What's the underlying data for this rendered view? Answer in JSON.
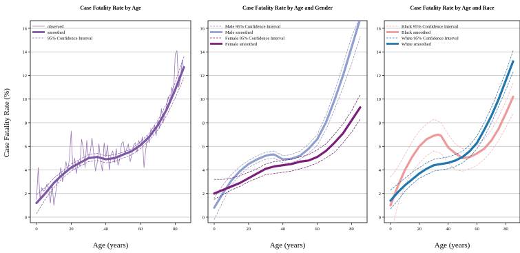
{
  "figure": {
    "ylabel": "Case Fatality Rate (%)"
  },
  "colors": {
    "purple_light": "#9a76b8",
    "purple": "#7d56a6",
    "male": "#8f9fcf",
    "male_ci": "#8a8ab5",
    "female": "#7b1e7a",
    "female_ci": "#5e1760",
    "black": "#ef9a9a",
    "black_ci": "#f4a8a8",
    "white": "#2176ae",
    "white_ci": "#1f6aa5",
    "grid": "#bdbdbd"
  },
  "chart_data": [
    {
      "type": "line",
      "title": "Case Fatality Rate by Age",
      "xlabel": "Age (years)",
      "ylabel": "Case Fatality Rate (%)",
      "xlim": [
        0,
        85
      ],
      "ylim": [
        0,
        16
      ],
      "xticks": [
        0,
        20,
        40,
        60,
        80
      ],
      "yticks": [
        0,
        2,
        4,
        6,
        8,
        10,
        12,
        14,
        16
      ],
      "grid": "horizontal",
      "legend_position": "top-left",
      "series": [
        {
          "name": "observed",
          "color": "#9a76b8",
          "width": 0.8,
          "dash": "",
          "x": [
            0,
            1,
            2,
            3,
            4,
            5,
            6,
            7,
            8,
            9,
            10,
            11,
            12,
            13,
            14,
            15,
            16,
            17,
            18,
            19,
            20,
            21,
            22,
            23,
            24,
            25,
            26,
            27,
            28,
            29,
            30,
            31,
            32,
            33,
            34,
            35,
            36,
            37,
            38,
            39,
            40,
            41,
            42,
            43,
            44,
            45,
            46,
            47,
            48,
            49,
            50,
            51,
            52,
            53,
            54,
            55,
            56,
            57,
            58,
            59,
            60,
            61,
            62,
            63,
            64,
            65,
            66,
            67,
            68,
            69,
            70,
            71,
            72,
            73,
            74,
            75,
            76,
            77,
            78,
            79,
            80,
            81,
            82,
            83,
            84,
            85
          ],
          "y": [
            1.5,
            4.2,
            1.6,
            2.5,
            2.2,
            2.3,
            2.8,
            2.4,
            1.2,
            2.8,
            1.0,
            2.0,
            3.0,
            3.3,
            4.2,
            3.0,
            3.8,
            4.7,
            3.9,
            5.0,
            7.3,
            4.0,
            5.0,
            3.7,
            4.8,
            4.3,
            6.6,
            5.8,
            4.2,
            6.5,
            4.9,
            5.5,
            6.7,
            5.4,
            3.9,
            4.6,
            6.2,
            4.7,
            3.9,
            6.3,
            5.1,
            6.1,
            4.0,
            5.3,
            5.6,
            4.6,
            5.8,
            4.4,
            4.9,
            6.2,
            6.4,
            5.4,
            5.8,
            6.2,
            4.7,
            5.3,
            6.1,
            6.3,
            5.5,
            6.5,
            6.0,
            6.8,
            4.2,
            5.7,
            6.9,
            6.3,
            7.5,
            7.0,
            7.8,
            6.9,
            8.2,
            7.5,
            9.2,
            8.0,
            8.8,
            9.4,
            10.2,
            9.6,
            11.0,
            10.3,
            13.8,
            14.1,
            11.0,
            11.7,
            13.3,
            12.5
          ]
        },
        {
          "name": "smoothed",
          "color": "#7d56a6",
          "width": 3.2,
          "dash": "",
          "x": [
            0,
            5,
            10,
            15,
            20,
            25,
            30,
            35,
            40,
            45,
            50,
            55,
            60,
            65,
            70,
            75,
            80,
            85
          ],
          "y": [
            1.2,
            2.0,
            2.9,
            3.6,
            4.2,
            4.6,
            5.0,
            5.1,
            4.9,
            5.0,
            5.3,
            5.6,
            6.1,
            6.8,
            7.8,
            9.1,
            10.8,
            12.7
          ]
        },
        {
          "name": "95% Confidence Interval",
          "color": "#7d56a6",
          "width": 0.7,
          "dash": "2.5,2",
          "x": [
            0,
            5,
            10,
            15,
            20,
            25,
            30,
            35,
            40,
            45,
            50,
            55,
            60,
            65,
            70,
            75,
            80,
            85
          ],
          "y": [
            1.9,
            2.5,
            3.3,
            3.9,
            4.5,
            4.9,
            5.3,
            5.4,
            5.2,
            5.3,
            5.5,
            5.8,
            6.4,
            7.1,
            8.2,
            9.6,
            11.4,
            13.6
          ]
        },
        {
          "color": "#7d56a6",
          "width": 0.7,
          "dash": "2.5,2",
          "x": [
            0,
            5,
            10,
            15,
            20,
            25,
            30,
            35,
            40,
            45,
            50,
            55,
            60,
            65,
            70,
            75,
            80,
            85
          ],
          "y": [
            0.3,
            1.5,
            2.5,
            3.3,
            3.9,
            4.3,
            4.7,
            4.8,
            4.6,
            4.7,
            5.0,
            5.3,
            5.8,
            6.5,
            7.4,
            8.6,
            10.1,
            11.8
          ]
        }
      ]
    },
    {
      "type": "line",
      "title": "Case Fatality Rate by Age and Gender",
      "xlabel": "Age (years)",
      "xlim": [
        0,
        85
      ],
      "ylim": [
        0,
        16
      ],
      "xticks": [
        0,
        20,
        40,
        60,
        80
      ],
      "yticks": [
        0,
        2,
        4,
        6,
        8,
        10,
        12,
        14,
        16
      ],
      "grid": "horizontal",
      "legend_position": "top-left",
      "series": [
        {
          "name": "Male 95% Confidence Interval",
          "color": "#8a8ab5",
          "width": 0.7,
          "dash": "2.5,2",
          "x": [
            0,
            5,
            10,
            15,
            20,
            25,
            30,
            35,
            40,
            45,
            50,
            55,
            60,
            65,
            70,
            75,
            80,
            85
          ],
          "y": [
            1.6,
            2.7,
            3.6,
            4.3,
            4.8,
            5.2,
            5.5,
            5.6,
            5.2,
            5.3,
            5.6,
            6.2,
            7.0,
            8.6,
            10.6,
            12.9,
            15.3,
            17.0
          ]
        },
        {
          "color": "#8a8ab5",
          "width": 0.7,
          "dash": "2.5,2",
          "x": [
            0,
            5,
            10,
            15,
            20,
            25,
            30,
            35,
            40,
            45,
            50,
            55,
            60,
            65,
            70,
            75,
            80,
            85
          ],
          "y": [
            -0.2,
            1.3,
            2.7,
            3.6,
            4.2,
            4.6,
            4.9,
            5.0,
            4.6,
            4.6,
            4.9,
            5.4,
            6.1,
            7.4,
            9.1,
            11.0,
            13.0,
            15.3
          ]
        },
        {
          "name": "Male smoothed",
          "color": "#8f9fcf",
          "width": 3.2,
          "dash": "",
          "x": [
            0,
            5,
            10,
            15,
            20,
            25,
            30,
            33,
            35,
            40,
            45,
            50,
            55,
            60,
            65,
            70,
            75,
            80,
            85
          ],
          "y": [
            0.8,
            2.0,
            3.1,
            3.9,
            4.5,
            4.9,
            5.2,
            5.3,
            5.3,
            4.9,
            4.95,
            5.2,
            5.8,
            6.6,
            8.0,
            9.9,
            12.0,
            14.4,
            16.8
          ]
        },
        {
          "name": "Female 95% Confidence Interval",
          "color": "#5e1760",
          "width": 0.7,
          "dash": "2.5,2",
          "x": [
            0,
            5,
            10,
            15,
            20,
            25,
            30,
            35,
            40,
            45,
            50,
            55,
            60,
            65,
            70,
            75,
            80,
            85
          ],
          "y": [
            3.2,
            3.2,
            3.3,
            3.5,
            3.8,
            4.1,
            4.5,
            4.7,
            4.8,
            4.9,
            5.1,
            5.3,
            5.7,
            6.2,
            7.0,
            7.9,
            9.0,
            10.4
          ]
        },
        {
          "color": "#5e1760",
          "width": 0.7,
          "dash": "2.5,2",
          "x": [
            0,
            5,
            10,
            15,
            20,
            25,
            30,
            35,
            40,
            45,
            50,
            55,
            60,
            65,
            70,
            75,
            80,
            85
          ],
          "y": [
            1.5,
            1.9,
            2.3,
            2.6,
            3.0,
            3.3,
            3.6,
            3.7,
            3.8,
            3.9,
            4.1,
            4.3,
            4.6,
            5.0,
            5.5,
            6.3,
            7.2,
            8.3
          ]
        },
        {
          "name": "Female smoothed",
          "color": "#7b1e7a",
          "width": 3.2,
          "dash": "",
          "x": [
            0,
            5,
            10,
            15,
            20,
            25,
            30,
            35,
            40,
            45,
            50,
            55,
            60,
            65,
            70,
            75,
            80,
            85
          ],
          "y": [
            2.0,
            2.3,
            2.6,
            2.9,
            3.3,
            3.7,
            4.1,
            4.3,
            4.4,
            4.5,
            4.7,
            4.8,
            5.1,
            5.6,
            6.3,
            7.1,
            8.2,
            9.3
          ]
        }
      ]
    },
    {
      "type": "line",
      "title": "Case Fatality Rate by Age and Race",
      "xlabel": "Age (years)",
      "xlim": [
        0,
        85
      ],
      "ylim": [
        0,
        16
      ],
      "xticks": [
        0,
        20,
        40,
        60,
        80
      ],
      "yticks": [
        0,
        2,
        4,
        6,
        8,
        10,
        12,
        14,
        16
      ],
      "grid": "horizontal",
      "legend_position": "top-left",
      "series": [
        {
          "name": "Black 95% Confidence Interval",
          "color": "#f4a8a8",
          "width": 0.7,
          "dash": "2.5,2",
          "x": [
            0,
            5,
            10,
            15,
            20,
            25,
            30,
            35,
            40,
            45,
            50,
            55,
            60,
            65,
            70,
            75,
            80,
            85
          ],
          "y": [
            3.4,
            4.2,
            5.3,
            6.4,
            7.3,
            7.9,
            8.3,
            8.0,
            7.0,
            6.2,
            5.8,
            5.8,
            6.1,
            6.6,
            7.4,
            8.5,
            9.8,
            11.4
          ]
        },
        {
          "color": "#f4a8a8",
          "width": 0.7,
          "dash": "2.5,2",
          "x": [
            0,
            5,
            10,
            15,
            20,
            25,
            30,
            35,
            40,
            45,
            50,
            55,
            60,
            65,
            70,
            75,
            80,
            85
          ],
          "y": [
            -1.5,
            1.0,
            2.7,
            3.8,
            4.6,
            5.2,
            5.6,
            5.4,
            4.6,
            4.0,
            3.9,
            4.1,
            4.4,
            4.9,
            5.6,
            6.5,
            7.6,
            8.8
          ]
        },
        {
          "name": "Black smoothed",
          "color": "#ef9a9a",
          "width": 3.2,
          "dash": "",
          "x": [
            0,
            5,
            10,
            15,
            20,
            25,
            30,
            33,
            35,
            40,
            45,
            50,
            55,
            60,
            65,
            70,
            75,
            80,
            85
          ],
          "y": [
            1.0,
            2.6,
            4.0,
            5.1,
            6.0,
            6.6,
            6.9,
            7.0,
            6.9,
            5.9,
            5.4,
            5.0,
            5.1,
            5.4,
            5.8,
            6.5,
            7.5,
            8.8,
            10.2
          ]
        },
        {
          "name": "White 95% Confidence Interval",
          "color": "#1f6aa5",
          "width": 0.7,
          "dash": "2.5,2",
          "x": [
            0,
            5,
            10,
            15,
            20,
            25,
            30,
            35,
            40,
            45,
            50,
            55,
            60,
            65,
            70,
            75,
            80,
            85
          ],
          "y": [
            2.3,
            2.8,
            3.3,
            3.8,
            4.2,
            4.6,
            4.9,
            5.0,
            5.1,
            5.3,
            5.6,
            6.1,
            6.9,
            8.0,
            9.3,
            10.8,
            12.3,
            14.1
          ]
        },
        {
          "color": "#1f6aa5",
          "width": 0.7,
          "dash": "2.5,2",
          "x": [
            0,
            5,
            10,
            15,
            20,
            25,
            30,
            35,
            40,
            45,
            50,
            55,
            60,
            65,
            70,
            75,
            80,
            85
          ],
          "y": [
            0.7,
            1.4,
            2.2,
            2.8,
            3.3,
            3.6,
            3.9,
            4.0,
            4.1,
            4.3,
            4.6,
            5.1,
            5.8,
            6.8,
            8.0,
            9.4,
            10.8,
            12.3
          ]
        },
        {
          "name": "White smoothed",
          "color": "#2176ae",
          "width": 3.2,
          "dash": "",
          "x": [
            0,
            5,
            10,
            15,
            20,
            25,
            30,
            35,
            40,
            45,
            50,
            55,
            60,
            65,
            70,
            75,
            80,
            85
          ],
          "y": [
            1.4,
            2.1,
            2.7,
            3.2,
            3.7,
            4.1,
            4.4,
            4.5,
            4.6,
            4.8,
            5.1,
            5.6,
            6.3,
            7.4,
            8.6,
            10.0,
            11.6,
            13.2
          ]
        }
      ]
    }
  ]
}
